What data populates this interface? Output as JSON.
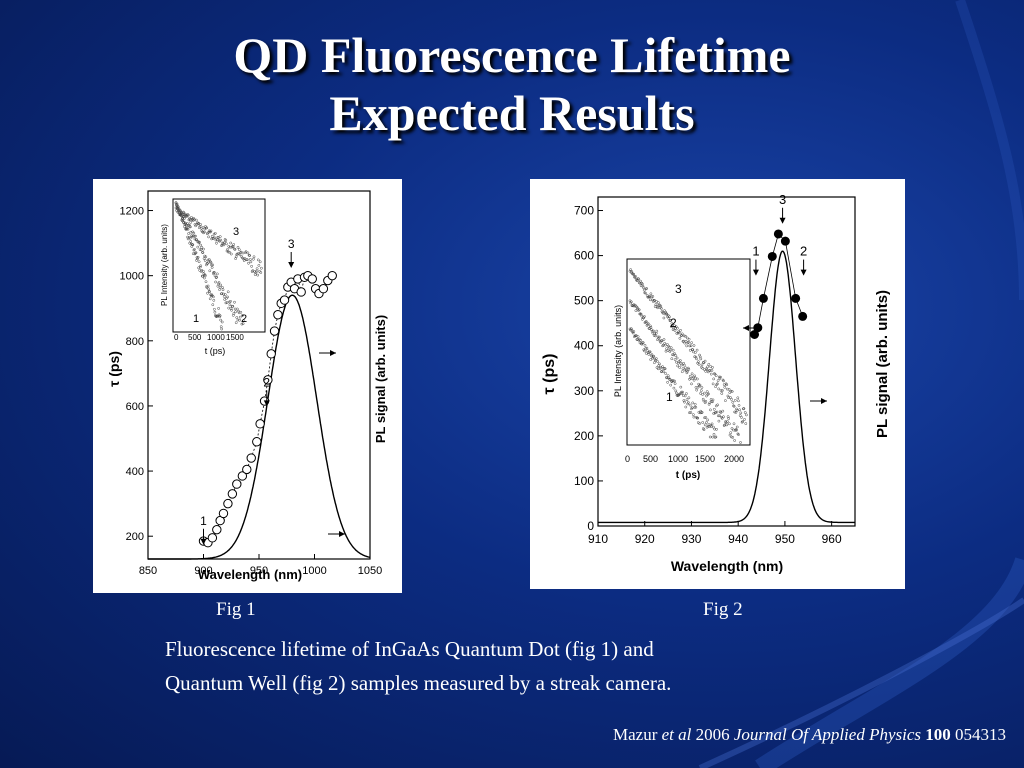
{
  "slide": {
    "title_line1": "QD Fluorescence Lifetime",
    "title_line2": "Expected Results",
    "fig1_label": "Fig 1",
    "fig2_label": "Fig 2",
    "caption_line1": "Fluorescence lifetime of InGaAs Quantum Dot (fig 1) and",
    "caption_line2": "Quantum Well (fig 2) samples measured by a streak camera.",
    "citation": {
      "author": "Mazur",
      "etal": "et al",
      "year": "2006",
      "journal": "Journal Of  Applied Physics",
      "volume": "100",
      "page": "054313"
    },
    "colors": {
      "background": "#0c2c82",
      "text": "#ffffff"
    }
  },
  "chart_data": [
    {
      "type": "scatter",
      "id": "fig1",
      "xlabel": "Wavelength (nm)",
      "ylabel": "τ (ps)",
      "y2label": "PL signal (arb. units)",
      "xlim": [
        850,
        1050
      ],
      "ylim": [
        130,
        1260
      ],
      "xticks": [
        "850",
        "900",
        "950",
        "1000",
        "1050"
      ],
      "yticks": [
        "200",
        "400",
        "600",
        "800",
        "1000",
        "1200"
      ],
      "grid": false,
      "points": [
        [
          900,
          185
        ],
        [
          904,
          180
        ],
        [
          908,
          195
        ],
        [
          912,
          220
        ],
        [
          915,
          248
        ],
        [
          918,
          270
        ],
        [
          922,
          300
        ],
        [
          926,
          330
        ],
        [
          930,
          360
        ],
        [
          935,
          385
        ],
        [
          939,
          405
        ],
        [
          943,
          440
        ],
        [
          948,
          490
        ],
        [
          951,
          545
        ],
        [
          955,
          615
        ],
        [
          958,
          680
        ],
        [
          961,
          760
        ],
        [
          964,
          830
        ],
        [
          967,
          880
        ],
        [
          970,
          915
        ],
        [
          973,
          925
        ],
        [
          976,
          965
        ],
        [
          979,
          980
        ],
        [
          982,
          960
        ],
        [
          985,
          990
        ],
        [
          988,
          950
        ],
        [
          991,
          995
        ],
        [
          994,
          1000
        ],
        [
          998,
          990
        ],
        [
          1001,
          960
        ],
        [
          1004,
          945
        ],
        [
          1008,
          960
        ],
        [
          1012,
          985
        ],
        [
          1016,
          1000
        ]
      ],
      "pl_curve": {
        "peak_x": 980,
        "width_nm": 22,
        "baseline": 130,
        "peak": 940
      },
      "annotations": [
        {
          "text": "1",
          "x": 900,
          "y": 235
        },
        {
          "text": "2",
          "x": 957,
          "y": 660
        },
        {
          "text": "3",
          "x": 979,
          "y": 1085
        }
      ],
      "inset": {
        "xlabel": "t (ps)",
        "ylabel": "PL Intensity (arb. units)",
        "xticks": [
          "0",
          "500",
          "1000",
          "1500"
        ],
        "curve_labels": [
          "1",
          "2",
          "3"
        ]
      }
    },
    {
      "type": "scatter",
      "id": "fig2",
      "xlabel": "Wavelength (nm)",
      "ylabel": "τ (ps)",
      "y2label": "PL signal (arb. units)",
      "xlim": [
        910,
        965
      ],
      "ylim": [
        0,
        730
      ],
      "xticks": [
        "910",
        "920",
        "930",
        "940",
        "950",
        "960"
      ],
      "yticks": [
        "0",
        "100",
        "200",
        "300",
        "400",
        "500",
        "600",
        "700"
      ],
      "grid": false,
      "points": [
        [
          943.5,
          425
        ],
        [
          944.2,
          440
        ],
        [
          945.4,
          505
        ],
        [
          947.3,
          598
        ],
        [
          948.6,
          648
        ],
        [
          950.1,
          632
        ],
        [
          952.3,
          505
        ],
        [
          953.8,
          465
        ]
      ],
      "pl_curve": {
        "peak_x": 949.5,
        "width_nm": 2.8,
        "baseline": 8,
        "peak": 610
      },
      "annotations": [
        {
          "text": "1",
          "x": 943.8,
          "y": 600
        },
        {
          "text": "2",
          "x": 954,
          "y": 600
        },
        {
          "text": "3",
          "x": 949.5,
          "y": 715
        }
      ],
      "inset": {
        "xlabel": "t (ps)",
        "ylabel": "PL Intensity (arb. units)",
        "xticks": [
          "0",
          "500",
          "1000",
          "1500",
          "2000"
        ],
        "curve_labels": [
          "1",
          "2",
          "3"
        ]
      }
    }
  ]
}
